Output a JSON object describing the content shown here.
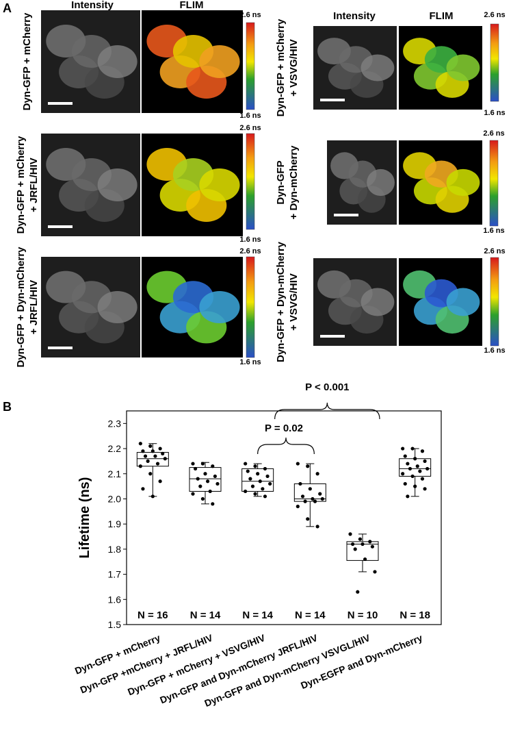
{
  "panel_a": {
    "label": "A",
    "columns": [
      {
        "intensity": "Intensity",
        "flim": "FLIM"
      },
      {
        "intensity": "Intensity",
        "flim": "FLIM"
      }
    ],
    "panels": [
      {
        "row_label": [
          "Dyn-GFP + mCherry"
        ],
        "scale_max": "2.6 ns",
        "scale_min": "1.6 ns"
      },
      {
        "row_label": [
          "Dyn-GFP + mCherry",
          "+ JRFL/HIV"
        ],
        "scale_max": "2.6 ns",
        "scale_min": "1.6 ns"
      },
      {
        "row_label": [
          "Dyn-GFP + Dyn-mCherry",
          "+ JRFL/HIV"
        ],
        "scale_max": "2.6 ns",
        "scale_min": "1.6 ns"
      },
      {
        "row_label": [
          "Dyn-GFP + mCherry",
          "+ VSVG/HIV"
        ],
        "scale_max": "2.6 ns",
        "scale_min": "1.6 ns"
      },
      {
        "row_label": [
          "Dyn-GFP",
          "+ Dyn-mCherry"
        ],
        "scale_max": "2.6 ns",
        "scale_min": "1.6 ns"
      },
      {
        "row_label": [
          "Dyn-GFP + Dyn-mCherry",
          "+ VSVG/HIV"
        ],
        "scale_max": "2.6 ns",
        "scale_min": "1.6 ns"
      }
    ]
  },
  "chart_data": {
    "type": "box",
    "panel_label": "B",
    "y_label": "Lifetime (ns)",
    "categories": [
      "Dyn-GFP + mCherry",
      "Dyn-GFP +mCherry + JRFL/HIV",
      "Dyn-GFP + mCherry + VSVG/HIV",
      "Dyn-GFP and Dyn-mCherry JRFL/HIV",
      "Dyn-GFP and Dyn-mCherry VSVGL/HIV",
      "Dyn-EGFP and Dyn-mCherry"
    ],
    "n_labels": [
      "N = 16",
      "N = 14",
      "N = 14",
      "N = 14",
      "N = 10",
      "N = 18"
    ],
    "boxes": [
      {
        "whislo": 2.01,
        "q1": 2.13,
        "med": 2.16,
        "q3": 2.185,
        "whishi": 2.22
      },
      {
        "whislo": 1.98,
        "q1": 2.03,
        "med": 2.08,
        "q3": 2.125,
        "whishi": 2.145
      },
      {
        "whislo": 2.01,
        "q1": 2.03,
        "med": 2.07,
        "q3": 2.12,
        "whishi": 2.14
      },
      {
        "whislo": 1.89,
        "q1": 1.99,
        "med": 2.0,
        "q3": 2.06,
        "whishi": 2.14
      },
      {
        "whislo": 1.71,
        "q1": 1.755,
        "med": 1.82,
        "q3": 1.83,
        "whishi": 1.86
      },
      {
        "whislo": 2.01,
        "q1": 2.09,
        "med": 2.12,
        "q3": 2.16,
        "whishi": 2.2
      }
    ],
    "points": [
      [
        2.22,
        2.21,
        2.2,
        2.19,
        2.19,
        2.18,
        2.17,
        2.17,
        2.16,
        2.15,
        2.14,
        2.13,
        2.1,
        2.07,
        2.04,
        2.01
      ],
      [
        2.14,
        2.14,
        2.13,
        2.12,
        2.1,
        2.09,
        2.08,
        2.07,
        2.06,
        2.05,
        2.03,
        2.02,
        2.0,
        1.98
      ],
      [
        2.14,
        2.13,
        2.12,
        2.11,
        2.1,
        2.09,
        2.08,
        2.07,
        2.06,
        2.05,
        2.04,
        2.03,
        2.02,
        2.01
      ],
      [
        2.14,
        2.13,
        2.1,
        2.06,
        2.04,
        2.02,
        2.01,
        2.0,
        2.0,
        1.99,
        1.99,
        1.97,
        1.92,
        1.89
      ],
      [
        1.86,
        1.84,
        1.83,
        1.82,
        1.82,
        1.81,
        1.8,
        1.76,
        1.71,
        1.63
      ],
      [
        2.2,
        2.2,
        2.19,
        2.17,
        2.16,
        2.15,
        2.14,
        2.13,
        2.12,
        2.12,
        2.11,
        2.1,
        2.09,
        2.08,
        2.06,
        2.05,
        2.04,
        2.01
      ]
    ],
    "annotations": [
      "P = 0.02",
      "P < 0.001"
    ],
    "ylim": [
      1.5,
      2.35
    ],
    "yticks": [
      1.5,
      1.6,
      1.7,
      1.8,
      1.9,
      {
        "value": 2.0,
        "label": "2.0"
      },
      2.1,
      2.2,
      2.3
    ]
  }
}
